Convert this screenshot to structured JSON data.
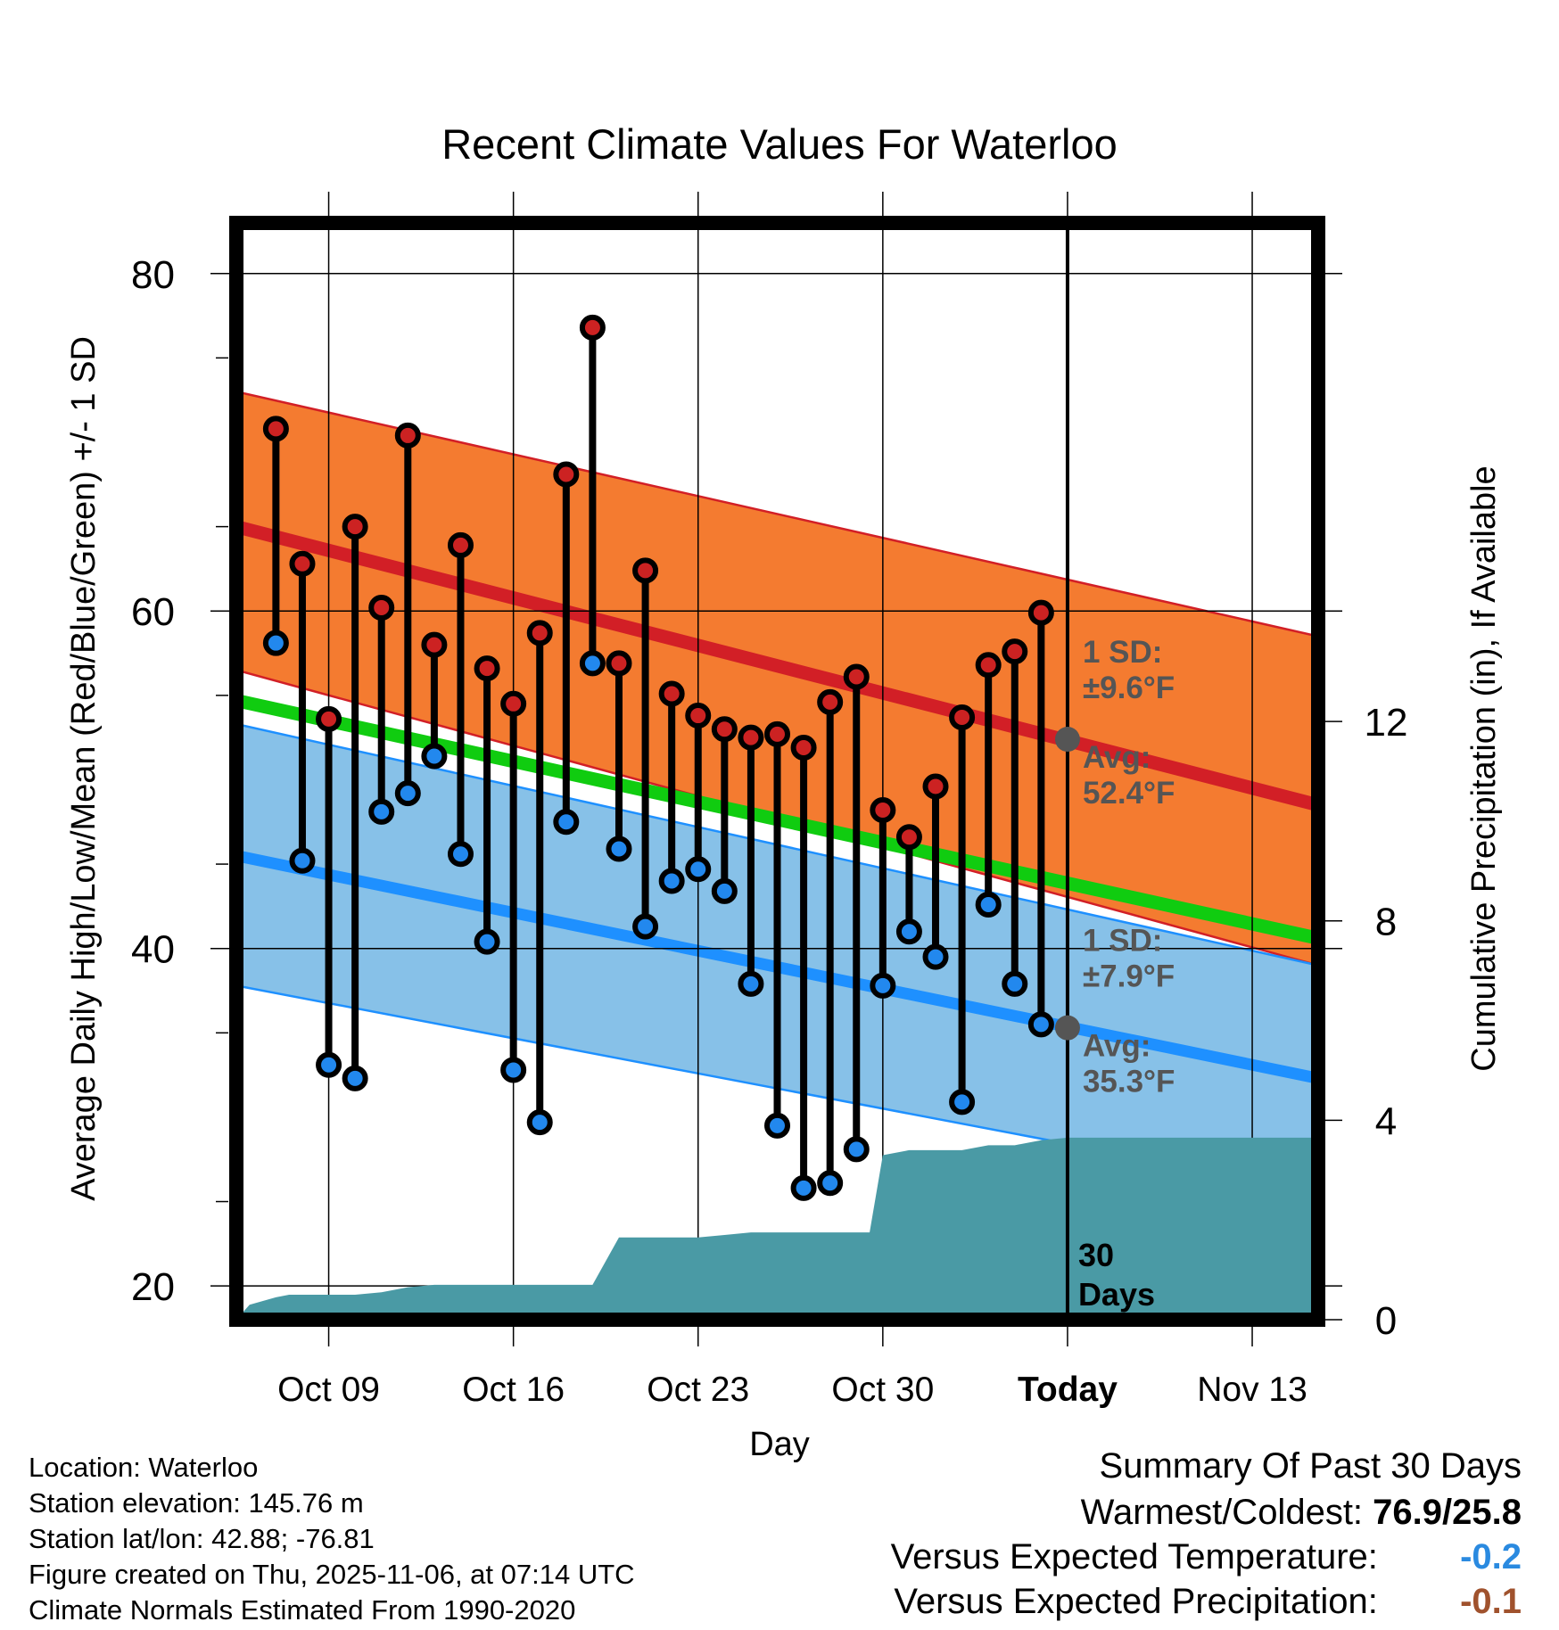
{
  "chart_data": {
    "type": "line",
    "title": "Recent Climate Values For Waterloo",
    "xlabel": "Day",
    "ylabel": "Average Daily High/Low/Mean (Red/Blue/Green) +/- 1 SD",
    "y2label": "Cumulative Precipitation (in), If Available",
    "xlim_day": [
      -0.5,
      40.5
    ],
    "ylim": [
      18,
      83
    ],
    "y2lim": [
      0,
      22
    ],
    "x_ticks": [
      {
        "day": 3,
        "label": "Oct 09"
      },
      {
        "day": 10,
        "label": "Oct 16"
      },
      {
        "day": 17,
        "label": "Oct 23"
      },
      {
        "day": 24,
        "label": "Oct 30"
      },
      {
        "day": 31,
        "label": "Today"
      },
      {
        "day": 38,
        "label": "Nov 13"
      }
    ],
    "y_ticks": [
      20,
      40,
      60,
      80
    ],
    "y2_ticks": [
      0,
      4,
      8,
      12
    ],
    "today_day": 31,
    "normals": {
      "high_avg": [
        65.0,
        48.5
      ],
      "high_sd_upper": [
        73.0,
        58.5
      ],
      "high_sd_lower": [
        56.5,
        39.0
      ],
      "low_avg": [
        45.5,
        32.3
      ],
      "low_sd_upper": [
        53.3,
        39.0
      ],
      "low_sd_lower": [
        37.8,
        25.6
      ],
      "mean_avg": [
        54.7,
        40.6
      ]
    },
    "high_label": {
      "sd": "1 SD:",
      "sd_value": "±9.6°F",
      "avg": "Avg:",
      "avg_value": "52.4°F",
      "avg_numeric": 52.4
    },
    "low_label": {
      "sd": "1 SD:",
      "sd_value": "±7.9°F",
      "avg": "Avg:",
      "avg_value": "35.3°F",
      "avg_numeric": 35.3
    },
    "days_label": "30\nDays",
    "series": [
      {
        "name": "Daily High",
        "color": "#cc2222",
        "values": [
          70.8,
          62.8,
          53.6,
          65.0,
          60.2,
          70.4,
          58.0,
          63.9,
          56.6,
          54.5,
          58.7,
          68.1,
          76.8,
          56.9,
          62.4,
          55.1,
          53.8,
          53.0,
          52.5,
          52.7,
          51.9,
          54.6,
          56.1,
          48.2,
          46.6,
          49.6,
          53.7,
          56.8,
          57.6,
          59.9
        ]
      },
      {
        "name": "Daily Low",
        "color": "#2288ee",
        "values": [
          58.1,
          45.2,
          33.1,
          32.3,
          48.1,
          49.2,
          51.4,
          45.6,
          40.4,
          32.8,
          29.7,
          47.5,
          56.9,
          45.9,
          41.3,
          44.0,
          44.7,
          43.4,
          37.9,
          29.5,
          25.8,
          26.1,
          28.1,
          37.8,
          41.0,
          39.5,
          30.9,
          42.6,
          37.9,
          35.5
        ]
      }
    ],
    "precipitation": {
      "name": "Cumulative Precipitation",
      "days": [
        -0.5,
        0,
        1.0,
        1.5,
        2,
        3,
        4,
        5,
        6,
        7,
        8,
        9,
        10,
        11,
        12,
        13,
        14,
        15,
        16,
        17,
        18,
        19,
        20,
        21,
        22,
        23,
        23.5,
        24,
        25,
        26,
        27,
        28,
        29,
        30,
        31,
        40.5
      ],
      "values": [
        0.0,
        0.3,
        0.45,
        0.5,
        0.5,
        0.5,
        0.5,
        0.55,
        0.65,
        0.7,
        0.7,
        0.7,
        0.7,
        0.7,
        0.7,
        0.7,
        1.65,
        1.65,
        1.65,
        1.65,
        1.7,
        1.75,
        1.75,
        1.75,
        1.75,
        1.75,
        1.75,
        3.3,
        3.4,
        3.4,
        3.4,
        3.5,
        3.5,
        3.6,
        3.65,
        3.65
      ]
    },
    "colors": {
      "high_band": "#f47b30",
      "high_line": "#d21f26",
      "low_band": "#87c1e8",
      "low_line": "#1e90ff",
      "mean_line": "#10cc10",
      "precip": "#4a9aa5",
      "label": "#555555"
    }
  },
  "info": {
    "location": "Location: Waterloo",
    "elevation": "Station elevation: 145.76 m",
    "latlon": "Station lat/lon: 42.88; -76.81",
    "created": "Figure created on Thu, 2025-11-06, at 07:14 UTC",
    "normals": "Climate Normals Estimated From 1990-2020"
  },
  "summary": {
    "title": "Summary Of Past 30 Days",
    "warm_cold_label": "Warmest/Coldest:",
    "warm_cold_value": "76.9/25.8",
    "temp_label": "Versus Expected Temperature:",
    "temp_value": "-0.2",
    "temp_color": "#2a8ae0",
    "precip_label": "Versus Expected Precipitation:",
    "precip_value": "-0.1",
    "precip_color": "#a0522d"
  }
}
